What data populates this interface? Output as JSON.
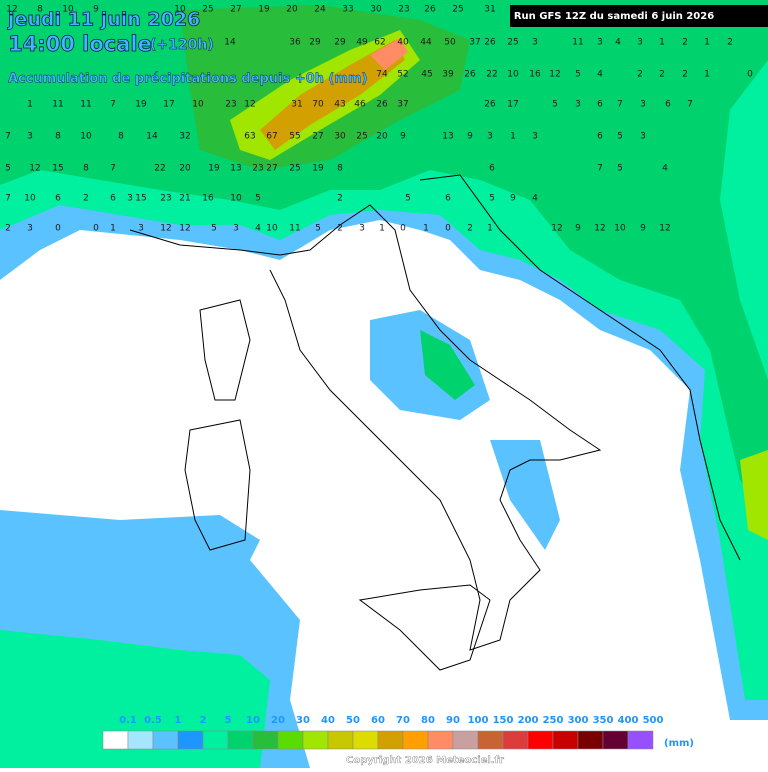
{
  "header": {
    "date": "jeudi 11 juin 2026",
    "time": "14:00 locale",
    "lead": "(+120h)",
    "subtitle": "Accumulation de précipitations depuis +0h (mm)",
    "run": "Run GFS 12Z du samedi 6 juin 2026"
  },
  "legend": {
    "labels": [
      "0.1",
      "0.5",
      "1",
      "2",
      "5",
      "10",
      "20",
      "30",
      "40",
      "50",
      "60",
      "70",
      "80",
      "90",
      "100",
      "150",
      "200",
      "250",
      "300",
      "350",
      "400",
      "500"
    ],
    "colors": [
      "#ffffff",
      "#a5e6ff",
      "#5ac3ff",
      "#1e96ff",
      "#00f0a0",
      "#00d26e",
      "#28be3c",
      "#5adc00",
      "#a0e600",
      "#c8c800",
      "#dcdc00",
      "#d2a000",
      "#ffa000",
      "#ff8c64",
      "#c8a0a0",
      "#c86432",
      "#dc3c3c",
      "#ff0000",
      "#c80000",
      "#780000",
      "#640032",
      "#9650ff"
    ],
    "unit": "(mm)"
  },
  "map_values": [
    [
      12,
      8,
      10,
      9,
      10,
      25,
      27,
      19,
      20,
      24,
      33,
      30,
      23,
      26,
      25,
      31
    ],
    [
      14,
      36,
      29,
      29,
      49,
      62,
      40,
      44,
      50,
      37,
      26,
      25,
      3,
      11,
      3,
      4,
      3,
      1,
      2,
      1,
      2
    ],
    [
      74,
      52,
      45,
      39,
      26,
      22,
      10,
      16,
      12,
      5,
      4,
      2,
      2,
      2,
      1,
      0
    ],
    [
      1,
      11,
      11,
      7,
      19,
      17,
      10,
      23,
      12,
      31,
      70,
      43,
      46,
      26,
      37,
      26,
      17,
      5,
      3,
      6,
      7,
      3,
      6,
      7
    ],
    [
      7,
      3,
      8,
      10,
      8,
      14,
      32,
      63,
      67,
      55,
      27,
      30,
      25,
      20,
      9,
      13,
      9,
      3,
      1,
      3,
      6,
      5,
      3
    ],
    [
      5,
      12,
      15,
      8,
      7,
      22,
      20,
      19,
      13,
      23,
      27,
      25,
      19,
      8,
      6,
      7,
      5,
      4
    ],
    [
      7,
      10,
      6,
      2,
      6,
      3,
      15,
      23,
      21,
      16,
      10,
      5,
      2,
      5,
      6,
      5,
      9,
      4
    ],
    [
      2,
      3,
      0,
      0,
      1,
      3,
      12,
      12,
      5,
      3,
      4,
      10,
      11,
      5,
      2,
      3,
      1,
      0,
      1,
      0,
      2,
      1,
      12,
      9,
      12,
      10,
      9,
      12
    ]
  ],
  "copyright": "Copyright 2026 Meteociel.fr"
}
